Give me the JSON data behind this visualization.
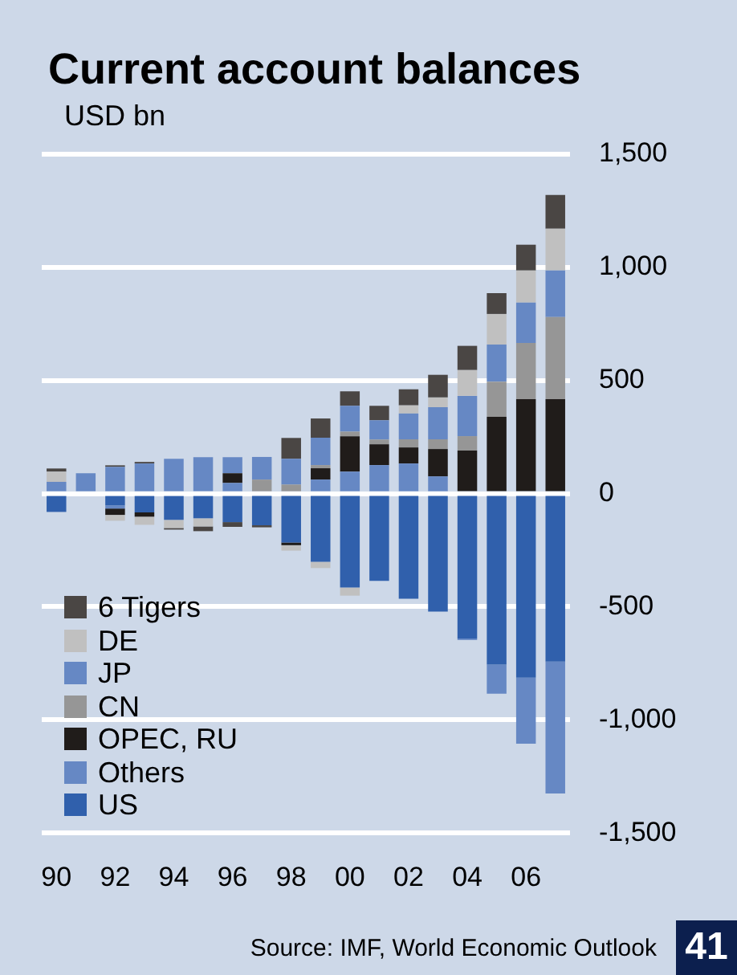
{
  "chart_data": {
    "type": "bar",
    "title": "Current account balances",
    "ylabel": "USD bn",
    "stacked": true,
    "categories": [
      "90",
      null,
      "92",
      null,
      "94",
      null,
      "96",
      null,
      "98",
      null,
      "00",
      null,
      "02",
      null,
      "04",
      null,
      "06",
      null
    ],
    "series": [
      {
        "name": "US",
        "color": "#3060ac",
        "values": [
          -81,
          null,
          -52,
          -83,
          -116,
          -109,
          -126,
          -140,
          -216,
          -301,
          -415,
          -386,
          -465,
          -521,
          -640,
          -756,
          -813,
          -742
        ]
      },
      {
        "name": "Others",
        "color": "#6688c4",
        "values": [
          null,
          null,
          -14,
          null,
          null,
          null,
          47,
          null,
          null,
          62,
          97,
          126,
          133,
          76,
          -7,
          -128,
          -292,
          -583
        ]
      },
      {
        "name": "OPEC, RU",
        "color": "#201c1a",
        "values": [
          null,
          null,
          -28,
          -19,
          null,
          null,
          43,
          null,
          -12,
          50,
          156,
          92,
          71,
          121,
          190,
          339,
          417,
          417
        ]
      },
      {
        "name": "CN",
        "color": "#969696",
        "values": [
          null,
          null,
          null,
          null,
          null,
          null,
          null,
          62,
          40,
          14,
          21,
          21,
          36,
          43,
          64,
          156,
          249,
          363
        ]
      },
      {
        "name": "JP",
        "color": "#6688c4",
        "values": [
          52,
          90,
          118,
          133,
          154,
          161,
          71,
          100,
          114,
          121,
          114,
          85,
          114,
          142,
          178,
          164,
          178,
          206
        ]
      },
      {
        "name": "DE",
        "color": "#c0c0c0",
        "values": [
          45,
          null,
          -26,
          -36,
          -36,
          -36,
          null,
          null,
          -24,
          -28,
          -36,
          null,
          36,
          43,
          114,
          135,
          142,
          185
        ]
      },
      {
        "name": "6 Tigers",
        "color": "#4a4644",
        "values": [
          14,
          null,
          7,
          7,
          -7,
          -21,
          -21,
          -9,
          92,
          85,
          64,
          64,
          71,
          100,
          107,
          92,
          114,
          149
        ]
      }
    ],
    "ylim": [
      -1500,
      1500
    ],
    "yticks": [
      {
        "value": -1500,
        "label": "-1,500"
      },
      {
        "value": -1000,
        "label": "-1,000"
      },
      -500,
      0,
      500,
      {
        "value": 1000,
        "label": "1,000"
      },
      {
        "value": 1500,
        "label": "1,500"
      }
    ],
    "grid": "y",
    "legend": "bottom left",
    "annotations": [
      "Source: IMF, World Economic Outlook",
      "41"
    ]
  }
}
